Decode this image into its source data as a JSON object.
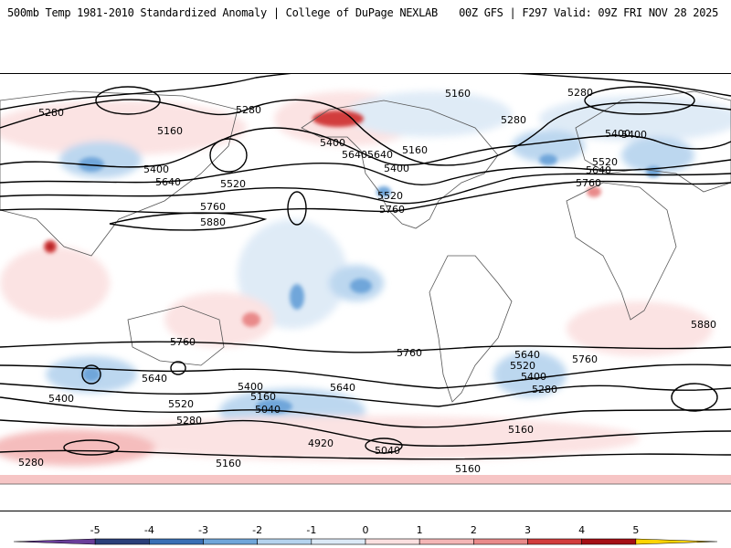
{
  "header": {
    "left_title": "500mb Temp 1981-2010 Standardized Anomaly | College of DuPage NEXLAB",
    "right_title": "00Z GFS | F297 Valid: 09Z FRI NOV 28 2025"
  },
  "contour_labels": [
    "5280",
    "5160",
    "5280",
    "5280",
    "5280",
    "5280",
    "5160",
    "5400",
    "5640",
    "5400",
    "5160",
    "5400",
    "5640",
    "5520",
    "5760",
    "5880",
    "5520",
    "5760",
    "5400",
    "5640",
    "5520",
    "5760",
    "5400",
    "5640",
    "5760",
    "5880",
    "5760",
    "5640",
    "5400",
    "5520",
    "5280",
    "5400",
    "5160",
    "5040",
    "5640",
    "5760",
    "5640",
    "5520",
    "5400",
    "5280",
    "4920",
    "5040",
    "5160",
    "5160",
    "5280",
    "5160",
    "5760"
  ],
  "colorbar": {
    "tick_labels": [
      "-5",
      "-4",
      "-3",
      "-2",
      "-1",
      "0",
      "1",
      "2",
      "3",
      "4",
      "5"
    ],
    "colors": [
      "#6a3d9a",
      "#2b3f7a",
      "#3a6fb5",
      "#6fa6da",
      "#b5d3ee",
      "#dce9f6",
      "#fbe0e0",
      "#f4b6b6",
      "#e98a8a",
      "#d23c3c",
      "#a50f15",
      "#ffd400"
    ]
  }
}
